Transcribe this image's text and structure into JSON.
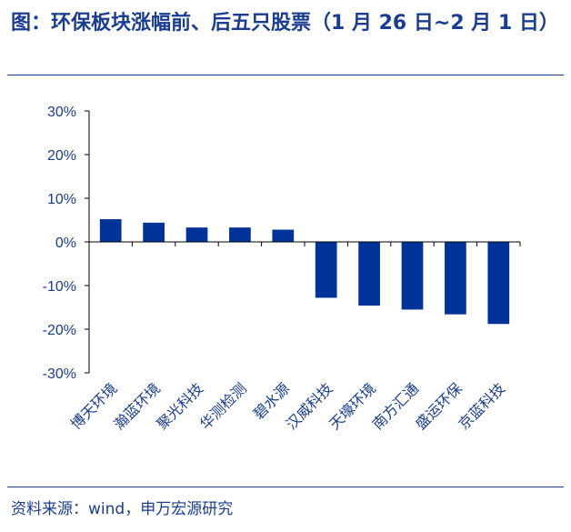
{
  "header": {
    "title": "图：环保板块涨幅前、后五只股票（1 月 26 日~2 月 1 日）"
  },
  "footer": {
    "source": "资料来源：wind，申万宏源研究"
  },
  "chart_data": {
    "type": "bar",
    "categories": [
      "博天环境",
      "瀚蓝环境",
      "聚光科技",
      "华测检测",
      "碧水源",
      "汉威科技",
      "天壕环境",
      "南方汇通",
      "盛运环保",
      "京蓝科技"
    ],
    "values": [
      5.2,
      4.4,
      3.3,
      3.3,
      2.8,
      -12.8,
      -14.6,
      -15.5,
      -16.6,
      -18.8
    ],
    "ylim": [
      -30,
      30
    ],
    "yticks": [
      30,
      20,
      10,
      0,
      -10,
      -20,
      -30
    ],
    "ytick_labels": [
      "30%",
      "20%",
      "10%",
      "0%",
      "-10%",
      "-20%",
      "-30%"
    ],
    "bar_color": "#003399",
    "axis_color": "#000000",
    "text_color": "#1a3d8f",
    "grid": false,
    "legend": "none"
  }
}
